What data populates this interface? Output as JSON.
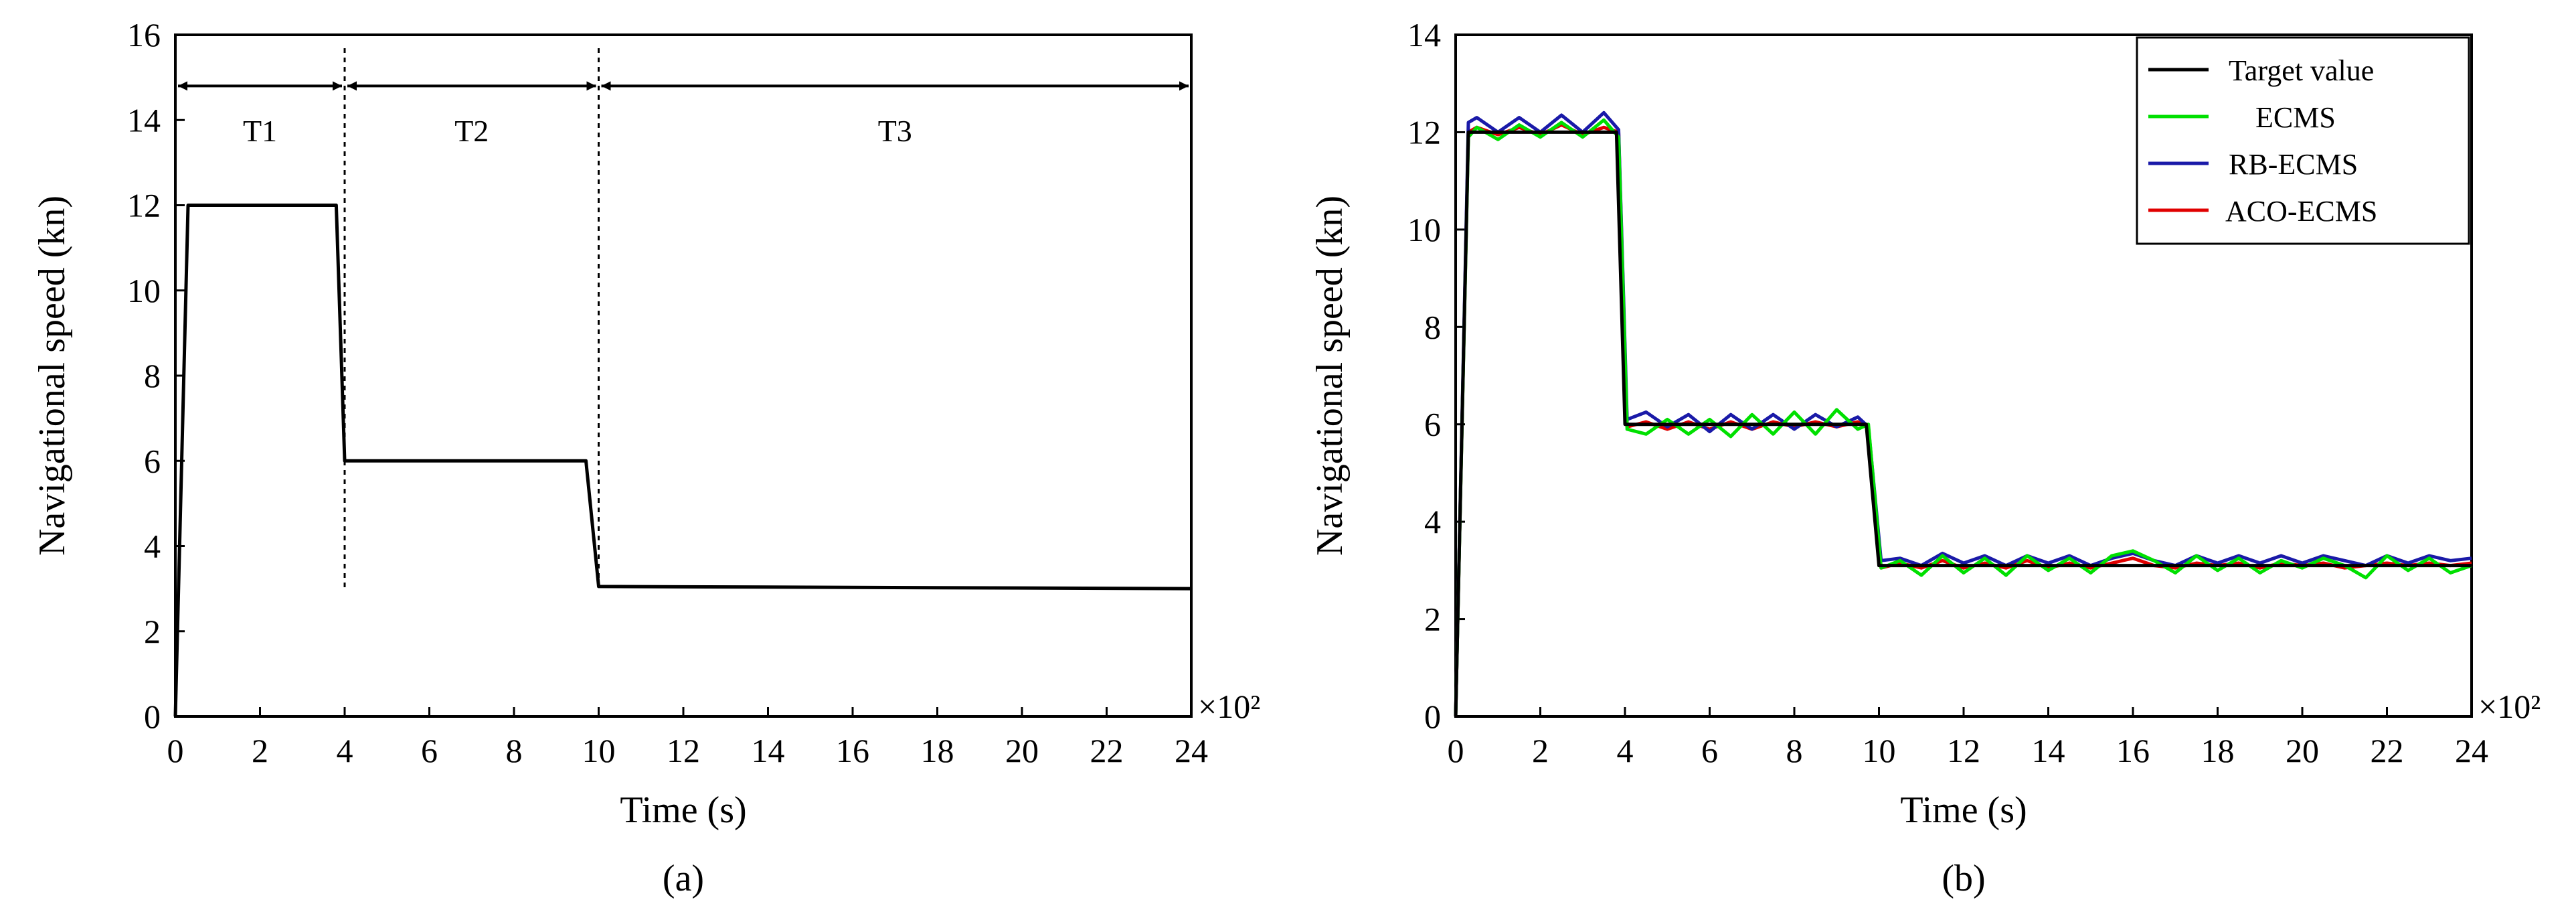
{
  "chart_data": [
    {
      "type": "line",
      "panel_label": "(a)",
      "xlabel": "Time (s)",
      "ylabel": "Navigational speed (kn)",
      "x_multiplier": "×10²",
      "xlim": [
        0,
        24
      ],
      "ylim": [
        0,
        16
      ],
      "xticks": [
        0,
        2,
        4,
        6,
        8,
        10,
        12,
        14,
        16,
        18,
        20,
        22,
        24
      ],
      "yticks": [
        0,
        2,
        4,
        6,
        8,
        10,
        12,
        14,
        16
      ],
      "grid": false,
      "line_color": "#000000",
      "series": [
        {
          "x": [
            0,
            0.3,
            3.8,
            4.0,
            9.7,
            10.0,
            24
          ],
          "y": [
            0,
            12,
            12,
            6,
            6,
            3.05,
            3.0
          ]
        }
      ],
      "phases": [
        {
          "label": "T1",
          "from": 0,
          "to": 4
        },
        {
          "label": "T2",
          "from": 4,
          "to": 10
        },
        {
          "label": "T3",
          "from": 10,
          "to": 24
        }
      ],
      "phase_arrow_y": 14.8,
      "phase_label_y": 13.5,
      "phase_dividers": [
        4,
        10
      ]
    },
    {
      "type": "line",
      "panel_label": "(b)",
      "xlabel": "Time (s)",
      "ylabel": "Navigational speed (kn)",
      "x_multiplier": "×10²",
      "xlim": [
        0,
        24
      ],
      "ylim": [
        0,
        14
      ],
      "xticks": [
        0,
        2,
        4,
        6,
        8,
        10,
        12,
        14,
        16,
        18,
        20,
        22,
        24
      ],
      "yticks": [
        0,
        2,
        4,
        6,
        8,
        10,
        12,
        14
      ],
      "grid": false,
      "legend_position": "top-right",
      "series": [
        {
          "name": "Target value",
          "color": "#000000",
          "x": [
            0,
            0.3,
            3.8,
            4.0,
            9.7,
            10.0,
            24
          ],
          "y": [
            0,
            12,
            12,
            6,
            6,
            3.1,
            3.1
          ]
        },
        {
          "name": "ECMS",
          "color": "#00e000",
          "x": [
            0,
            0.3,
            0.5,
            1.0,
            1.5,
            2.0,
            2.5,
            3.0,
            3.5,
            3.85,
            4.05,
            4.5,
            5.0,
            5.5,
            6.0,
            6.5,
            7.0,
            7.5,
            8.0,
            8.5,
            9.0,
            9.5,
            9.75,
            10.05,
            10.5,
            11.0,
            11.5,
            12.0,
            12.5,
            13.0,
            13.5,
            14.0,
            14.5,
            15.0,
            15.5,
            16.0,
            16.5,
            17.0,
            17.5,
            18.0,
            18.5,
            19.0,
            19.5,
            20.0,
            20.5,
            21.0,
            21.5,
            22.0,
            22.5,
            23.0,
            23.5,
            24.0
          ],
          "y": [
            0,
            11.9,
            12.1,
            11.85,
            12.15,
            11.9,
            12.2,
            11.9,
            12.25,
            11.9,
            5.9,
            5.8,
            6.1,
            5.8,
            6.1,
            5.75,
            6.2,
            5.8,
            6.25,
            5.8,
            6.3,
            5.9,
            6.0,
            3.05,
            3.2,
            2.9,
            3.3,
            2.95,
            3.25,
            2.9,
            3.3,
            3.0,
            3.25,
            2.95,
            3.3,
            3.4,
            3.2,
            2.95,
            3.3,
            3.0,
            3.25,
            2.95,
            3.2,
            3.05,
            3.25,
            3.1,
            2.85,
            3.3,
            3.0,
            3.25,
            2.95,
            3.1
          ]
        },
        {
          "name": "RB-ECMS",
          "color": "#1a1aa8",
          "x": [
            0,
            0.3,
            0.5,
            1.0,
            1.5,
            2.0,
            2.5,
            3.0,
            3.5,
            3.85,
            4.05,
            4.5,
            5.0,
            5.5,
            6.0,
            6.5,
            7.0,
            7.5,
            8.0,
            8.5,
            9.0,
            9.5,
            9.75,
            10.05,
            10.5,
            11.0,
            11.5,
            12.0,
            12.5,
            13.0,
            13.5,
            14.0,
            14.5,
            15.0,
            15.5,
            16.0,
            16.5,
            17.0,
            17.5,
            18.0,
            18.5,
            19.0,
            19.5,
            20.0,
            20.5,
            21.0,
            21.5,
            22.0,
            22.5,
            23.0,
            23.5,
            24.0
          ],
          "y": [
            0,
            12.2,
            12.3,
            12.0,
            12.3,
            12.0,
            12.35,
            12.0,
            12.4,
            12.05,
            6.1,
            6.25,
            5.95,
            6.2,
            5.85,
            6.2,
            5.9,
            6.2,
            5.9,
            6.2,
            5.95,
            6.15,
            5.95,
            3.2,
            3.25,
            3.1,
            3.35,
            3.15,
            3.3,
            3.1,
            3.3,
            3.15,
            3.3,
            3.1,
            3.25,
            3.35,
            3.2,
            3.1,
            3.3,
            3.15,
            3.3,
            3.15,
            3.3,
            3.15,
            3.3,
            3.2,
            3.1,
            3.3,
            3.15,
            3.3,
            3.2,
            3.25
          ]
        },
        {
          "name": "ACO-ECMS",
          "color": "#e00000",
          "x": [
            0,
            0.3,
            0.5,
            1.0,
            1.5,
            2.0,
            2.5,
            3.0,
            3.5,
            3.85,
            4.05,
            4.5,
            5.0,
            5.5,
            6.0,
            6.5,
            7.0,
            7.5,
            8.0,
            8.5,
            9.0,
            9.5,
            9.75,
            10.05,
            10.5,
            11.0,
            11.5,
            12.0,
            12.5,
            13.0,
            13.5,
            14.0,
            14.5,
            15.0,
            15.5,
            16.0,
            16.5,
            17.0,
            17.5,
            18.0,
            18.5,
            19.0,
            19.5,
            20.0,
            20.5,
            21.0,
            21.5,
            22.0,
            22.5,
            23.0,
            23.5,
            24.0
          ],
          "y": [
            0,
            12.0,
            12.1,
            11.95,
            12.1,
            11.95,
            12.15,
            11.95,
            12.1,
            12.0,
            5.95,
            6.05,
            5.9,
            6.05,
            5.9,
            6.05,
            5.9,
            6.05,
            5.95,
            6.05,
            5.95,
            6.05,
            5.95,
            3.05,
            3.15,
            3.05,
            3.2,
            3.05,
            3.15,
            3.05,
            3.2,
            3.05,
            3.15,
            3.05,
            3.15,
            3.25,
            3.1,
            3.05,
            3.15,
            3.1,
            3.15,
            3.05,
            3.15,
            3.1,
            3.15,
            3.05,
            3.1,
            3.15,
            3.1,
            3.15,
            3.1,
            3.15
          ]
        }
      ]
    }
  ]
}
